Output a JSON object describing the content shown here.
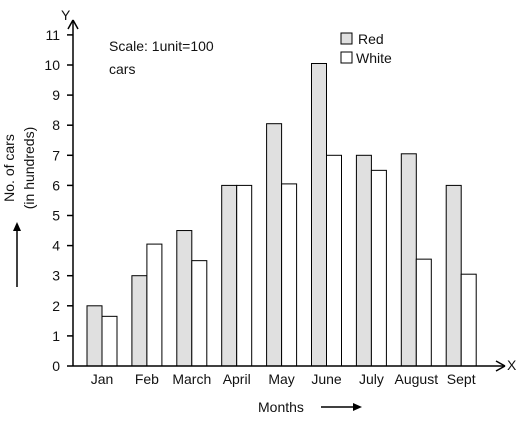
{
  "chart_data": {
    "type": "bar",
    "categories": [
      "Jan",
      "Feb",
      "March",
      "April",
      "May",
      "June",
      "July",
      "August",
      "Sept"
    ],
    "series": [
      {
        "name": "Red",
        "color": "#e0e0e0",
        "values": [
          2,
          3,
          4.5,
          6,
          8.05,
          10.05,
          7,
          7.05,
          6
        ]
      },
      {
        "name": "White",
        "color": "#ffffff",
        "values": [
          1.65,
          4.05,
          3.5,
          6,
          6.05,
          7,
          6.5,
          3.55,
          3.05
        ]
      }
    ],
    "ylim": [
      0,
      11
    ],
    "yticks": [
      "0",
      "1",
      "2",
      "3",
      "4",
      "5",
      "6",
      "7",
      "8",
      "9",
      "10",
      "11"
    ],
    "xlabel": "Months",
    "ylabel_line1": "No. of cars",
    "ylabel_line2": "(in hundreds)",
    "x_axis_letter": "X",
    "y_axis_letter": "Y",
    "scale_note_line1": "Scale: 1unit=100",
    "scale_note_line2": "cars",
    "legend_position": "top-right",
    "grid": false
  }
}
